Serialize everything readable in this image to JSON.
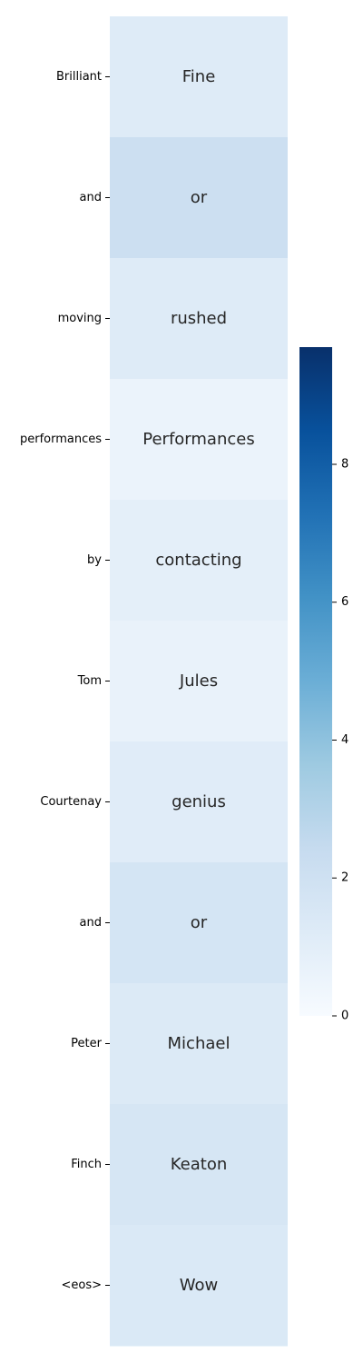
{
  "chart_data": {
    "type": "heatmap",
    "title": "",
    "xlabel": "",
    "ylabel": "",
    "rows": [
      {
        "label": "Brilliant",
        "annotation": "Fine",
        "value": 1.2
      },
      {
        "label": "and",
        "annotation": "or",
        "value": 2.1
      },
      {
        "label": "moving",
        "annotation": "rushed",
        "value": 1.2
      },
      {
        "label": "performances",
        "annotation": "Performances",
        "value": 0.6
      },
      {
        "label": "by",
        "annotation": "contacting",
        "value": 0.9
      },
      {
        "label": "Tom",
        "annotation": "Jules",
        "value": 0.7
      },
      {
        "label": "Courtenay",
        "annotation": "genius",
        "value": 1.1
      },
      {
        "label": "and",
        "annotation": "or",
        "value": 1.7
      },
      {
        "label": "Peter",
        "annotation": "Michael",
        "value": 1.3
      },
      {
        "label": "Finch",
        "annotation": "Keaton",
        "value": 1.6
      },
      {
        "label": "<eos>",
        "annotation": "Wow",
        "value": 1.4
      }
    ],
    "colorbar": {
      "colormap": "Blues",
      "range": [
        0,
        9.7
      ],
      "ticks": [
        "0",
        "2",
        "4",
        "6",
        "8"
      ]
    }
  }
}
